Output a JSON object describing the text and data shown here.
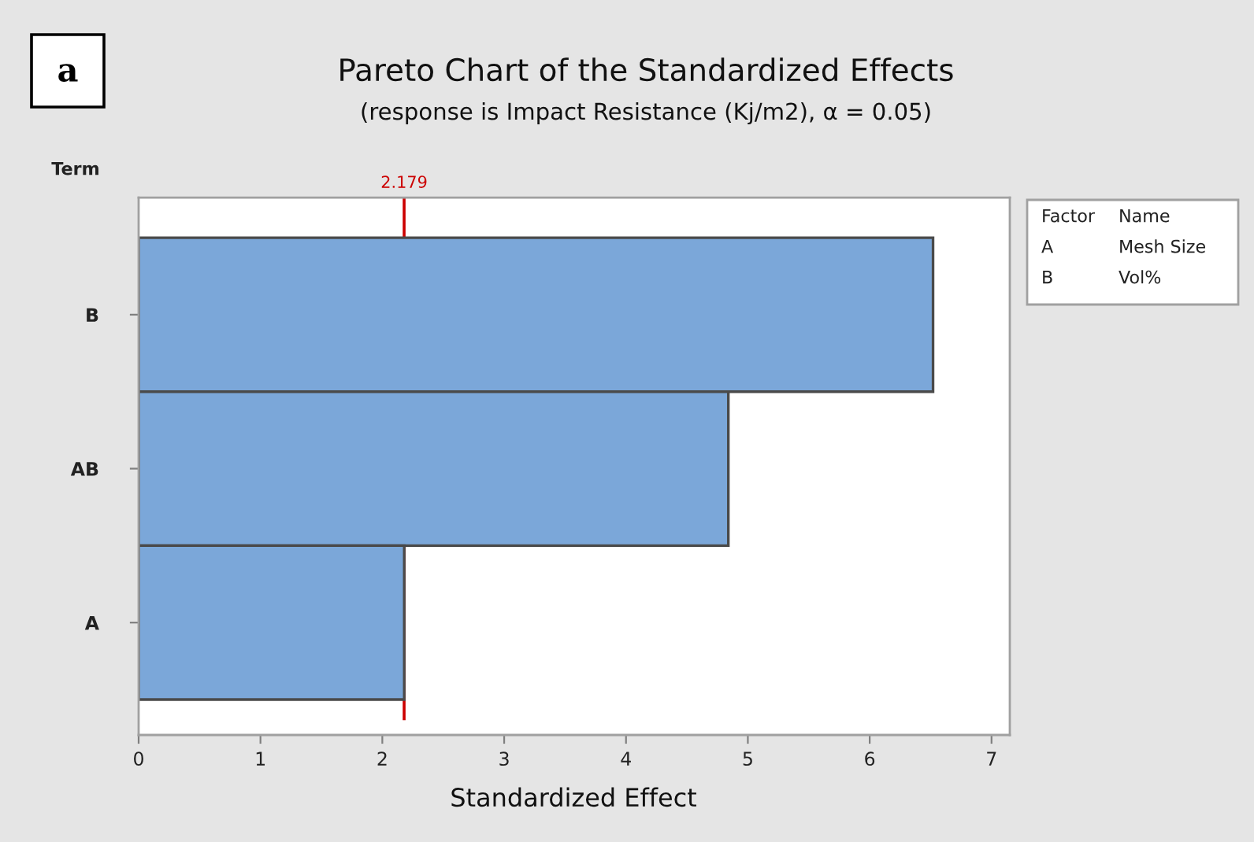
{
  "chart_data": {
    "type": "bar",
    "orientation": "horizontal",
    "title": "Pareto Chart of the Standardized Effects",
    "subtitle": "(response is Impact Resistance (Kj/m2), α = 0.05)",
    "xlabel": "Standardized Effect",
    "ylabel": "Term",
    "categories": [
      "B",
      "AB",
      "A"
    ],
    "values": [
      6.52,
      4.84,
      2.18
    ],
    "color": "#7ba7d9",
    "xlim": [
      0,
      7.15
    ],
    "xticks": [
      0,
      1,
      2,
      3,
      4,
      5,
      6,
      7
    ],
    "grid": false,
    "legend": false,
    "ref_lines": [
      {
        "axis": "x",
        "value": 2.179,
        "label": "2.179",
        "color": "#cc0000"
      }
    ],
    "annotations": [
      "a",
      "Factor",
      "Name",
      "A",
      "Mesh Size",
      "B",
      "Vol%"
    ]
  }
}
